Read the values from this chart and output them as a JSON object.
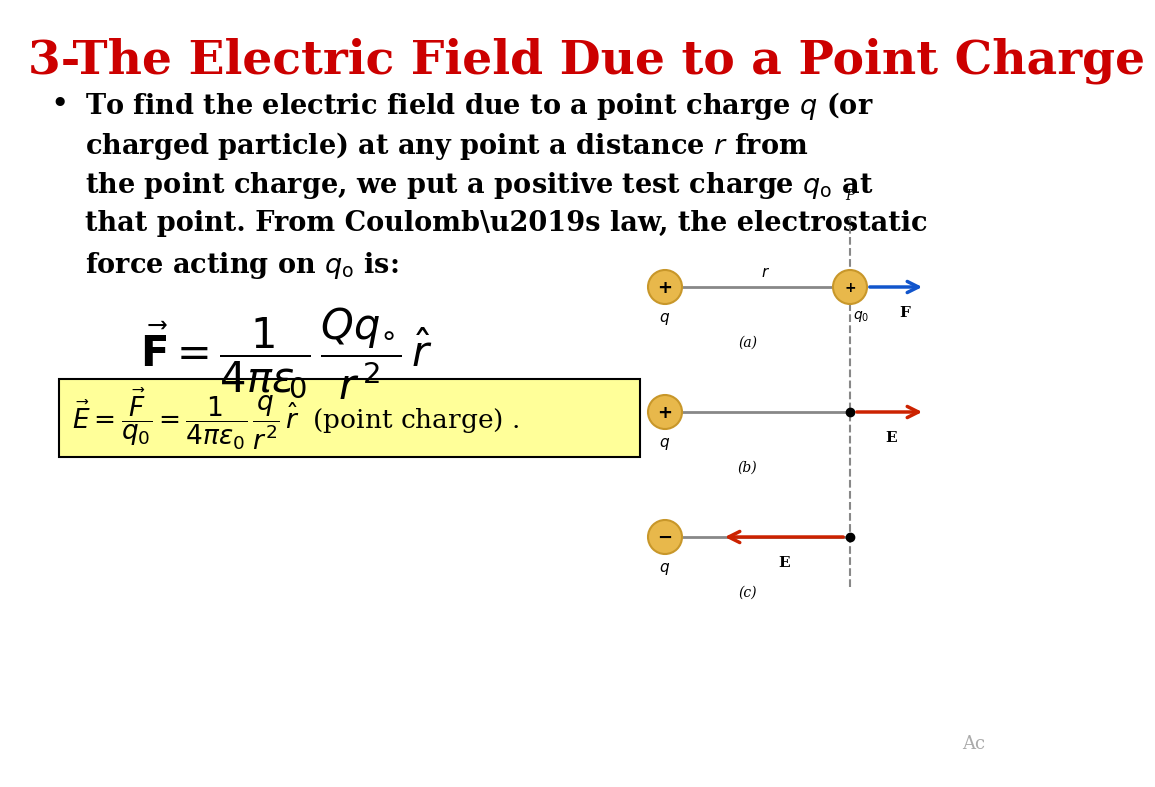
{
  "title": "3-The Electric Field Due to a Point Charge",
  "title_color": "#CC0000",
  "title_fontsize": 34,
  "bg_color": "#FFFFFF",
  "highlight_color": "#FFFF99",
  "footer_text": "Ac",
  "charge_color": "#E8B84B",
  "charge_edge": "#C8972A",
  "line_color": "#888888",
  "blue_arrow": "#1155CC",
  "red_arrow": "#CC2200"
}
